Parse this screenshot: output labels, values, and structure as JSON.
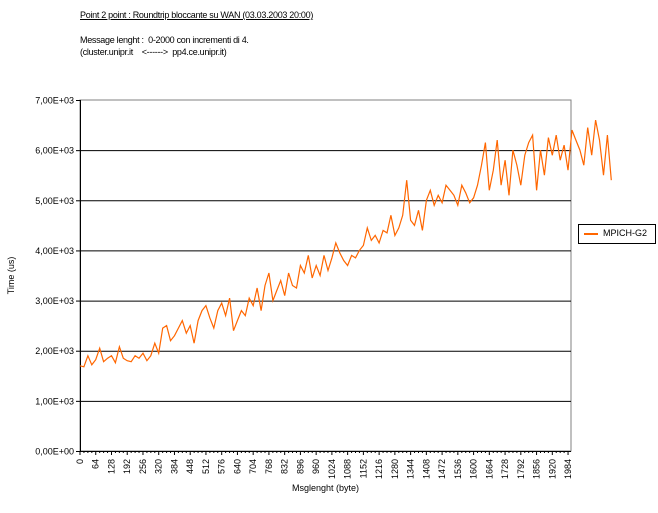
{
  "header": {
    "title": "Point 2 point : Roundtrip bloccante su WAN (03.03.2003 20:00)",
    "subtitle_line1": "Message lenght :  0-2000 con incrementi di 4.",
    "subtitle_line2": "(cluster.unipr.it    <------>  pp4.ce.unipr.it)"
  },
  "colors": {
    "series": "#ff6600",
    "grid": "#000000",
    "axis": "#808080"
  },
  "chart_data": {
    "type": "line",
    "title": "Point 2 point : Roundtrip bloccante su WAN (03.03.2003 20:00)",
    "xlabel": "Msglenght (byte)",
    "ylabel": "Time (us)",
    "ylim": [
      0,
      7000
    ],
    "xlim": [
      0,
      1996
    ],
    "grid": true,
    "legend_position": "right",
    "yticks": [
      "0,00E+00",
      "1,00E+03",
      "2,00E+03",
      "3,00E+03",
      "4,00E+03",
      "5,00E+03",
      "6,00E+03",
      "7,00E+03"
    ],
    "xticks": [
      "0",
      "64",
      "128",
      "192",
      "256",
      "320",
      "384",
      "448",
      "512",
      "576",
      "640",
      "704",
      "768",
      "832",
      "896",
      "960",
      "1024",
      "1088",
      "1152",
      "1216",
      "1280",
      "1344",
      "1408",
      "1472",
      "1536",
      "1600",
      "1664",
      "1728",
      "1792",
      "1856",
      "1920",
      "1984"
    ],
    "series": [
      {
        "name": "MPICH-G2",
        "x_step": 16,
        "values": [
          1700,
          1680,
          1900,
          1720,
          1820,
          2050,
          1780,
          1850,
          1900,
          1760,
          2080,
          1850,
          1800,
          1780,
          1900,
          1850,
          1950,
          1800,
          1900,
          2150,
          1950,
          2450,
          2500,
          2200,
          2300,
          2450,
          2600,
          2350,
          2500,
          2150,
          2600,
          2800,
          2900,
          2650,
          2450,
          2800,
          2950,
          2700,
          3050,
          2400,
          2600,
          2800,
          2700,
          3050,
          2900,
          3250,
          2800,
          3300,
          3550,
          3000,
          3200,
          3400,
          3100,
          3550,
          3300,
          3250,
          3700,
          3550,
          3900,
          3450,
          3700,
          3500,
          3900,
          3600,
          3850,
          4150,
          3950,
          3800,
          3700,
          3900,
          3850,
          4000,
          4100,
          4450,
          4200,
          4300,
          4150,
          4400,
          4350,
          4700,
          4300,
          4450,
          4700,
          5400,
          4600,
          4500,
          4800,
          4400,
          5000,
          5200,
          4900,
          5100,
          4950,
          5300,
          5200,
          5100,
          4900,
          5300,
          5150,
          4950,
          5050,
          5300,
          5700,
          6150,
          5200,
          5600,
          6200,
          5300,
          5800,
          5100,
          6000,
          5700,
          5300,
          5900,
          6150,
          6300,
          5200,
          6000,
          5500,
          6250,
          5900,
          6300,
          5800,
          6100,
          5600,
          6400,
          6200,
          6000,
          5700,
          6450,
          5900,
          6600,
          6200,
          5500,
          6300,
          5400
        ]
      }
    ]
  }
}
